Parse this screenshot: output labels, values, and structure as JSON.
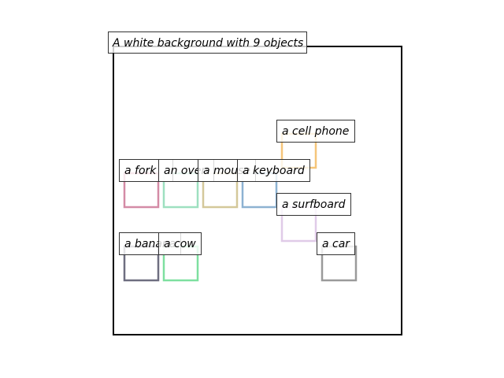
{
  "title": "A white background with 9 objects",
  "frame_color": "#000000",
  "objects": [
    {
      "label": "a cell phone",
      "color": "#f5c57a"
    },
    {
      "label": "a fork",
      "color": "#d48ba6"
    },
    {
      "label": "an oven",
      "color": "#9ee0c0"
    },
    {
      "label": "a mouse",
      "color": "#d4c89a"
    },
    {
      "label": "a keyboard",
      "color": "#8db2d2"
    },
    {
      "label": "a surfboard",
      "color": "#e0cbe8"
    },
    {
      "label": "a banana",
      "color": "#6e6e80"
    },
    {
      "label": "a cow",
      "color": "#7ee0a0"
    },
    {
      "label": "a car",
      "color": "#9a9a9a"
    }
  ]
}
